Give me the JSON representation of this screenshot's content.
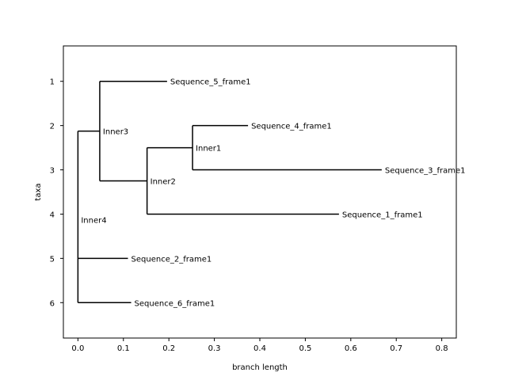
{
  "chart_data": {
    "type": "tree",
    "title": "",
    "xlabel": "branch length",
    "ylabel": "taxa",
    "xlim": [
      -0.032,
      0.832
    ],
    "ylim": [
      6.8,
      0.2
    ],
    "xticks": [
      0.0,
      0.1,
      0.2,
      0.3,
      0.4,
      0.5,
      0.6,
      0.7,
      0.8
    ],
    "xtick_labels": [
      "0.0",
      "0.1",
      "0.2",
      "0.3",
      "0.4",
      "0.5",
      "0.6",
      "0.7",
      "0.8"
    ],
    "yticks": [
      1,
      2,
      3,
      4,
      5,
      6
    ],
    "ytick_labels": [
      "1",
      "2",
      "3",
      "4",
      "5",
      "6"
    ],
    "grid": false,
    "line_color": "#000000",
    "nodes": [
      {
        "id": "root",
        "label": "Inner4",
        "x": 0.0,
        "y": 4.125,
        "parent": null
      },
      {
        "id": "n3",
        "label": "Inner3",
        "x": 0.048,
        "y": 2.125,
        "parent": "root"
      },
      {
        "id": "n2",
        "label": "Inner2",
        "x": 0.152,
        "y": 3.25,
        "parent": "n3"
      },
      {
        "id": "n1",
        "label": "Inner1",
        "x": 0.252,
        "y": 2.5,
        "parent": "n2"
      },
      {
        "id": "s5",
        "label": "Sequence_5_frame1",
        "x": 0.196,
        "y": 1,
        "parent": "n3"
      },
      {
        "id": "s4",
        "label": "Sequence_4_frame1",
        "x": 0.374,
        "y": 2,
        "parent": "n1"
      },
      {
        "id": "s3",
        "label": "Sequence_3_frame1",
        "x": 0.668,
        "y": 3,
        "parent": "n1"
      },
      {
        "id": "s1",
        "label": "Sequence_1_frame1",
        "x": 0.574,
        "y": 4,
        "parent": "n2"
      },
      {
        "id": "s2",
        "label": "Sequence_2_frame1",
        "x": 0.11,
        "y": 5,
        "parent": "root"
      },
      {
        "id": "s6",
        "label": "Sequence_6_frame1",
        "x": 0.117,
        "y": 6,
        "parent": "root"
      }
    ]
  }
}
